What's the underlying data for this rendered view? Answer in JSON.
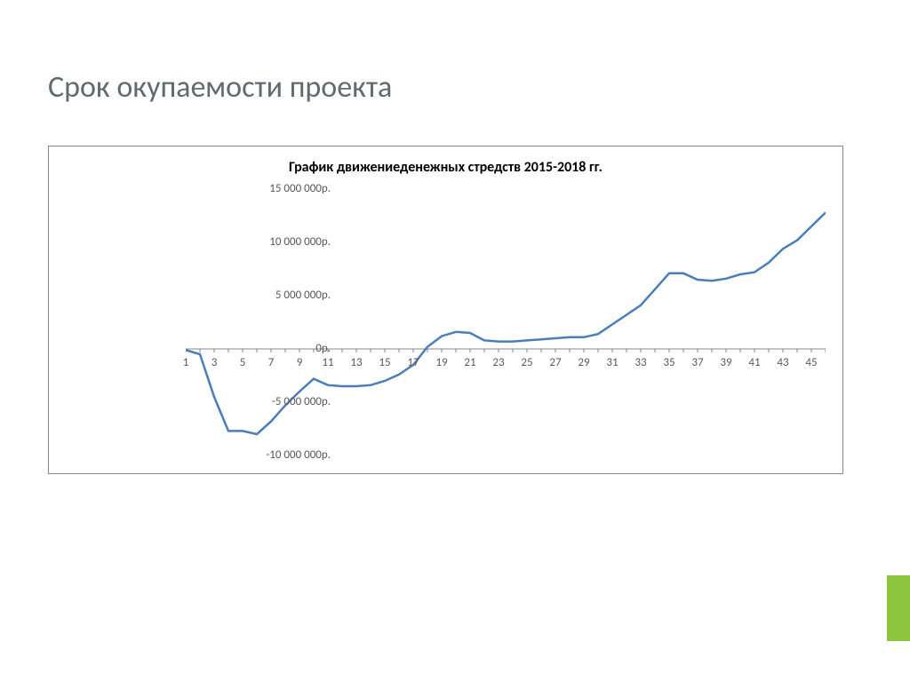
{
  "slide": {
    "title": "Срок окупаемости проекта",
    "title_color": "#5f6a72",
    "title_fontsize": 34
  },
  "accent": {
    "color": "#8cc63f"
  },
  "chart": {
    "type": "line",
    "title": "График движениеденежных стредств 2015-2018 гг.",
    "title_fontsize": 16,
    "title_fontweight": "bold",
    "frame_border_color": "#888888",
    "background_color": "#ffffff",
    "y_axis": {
      "min": -10000000,
      "max": 15000000,
      "tick_step": 5000000,
      "tick_labels": [
        "-10 000 000р.",
        "-5 000 000р.",
        "0р.",
        "5 000 000р.",
        "10 000 000р.",
        "15 000 000р."
      ],
      "tick_values": [
        -10000000,
        -5000000,
        0,
        5000000,
        10000000,
        15000000
      ],
      "label_fontsize": 13,
      "label_color": "#595959"
    },
    "x_axis": {
      "min": 1,
      "max": 46,
      "tick_step": 2,
      "tick_labels": [
        "1",
        "3",
        "5",
        "7",
        "9",
        "11",
        "13",
        "15",
        "17",
        "19",
        "21",
        "23",
        "25",
        "27",
        "29",
        "31",
        "33",
        "35",
        "37",
        "39",
        "41",
        "43",
        "45"
      ],
      "tick_values": [
        1,
        3,
        5,
        7,
        9,
        11,
        13,
        15,
        17,
        19,
        21,
        23,
        25,
        27,
        29,
        31,
        33,
        35,
        37,
        39,
        41,
        43,
        45
      ],
      "label_fontsize": 13,
      "label_color": "#595959",
      "baseline_at_y": 0,
      "tick_length": 4
    },
    "series": {
      "color": "#4a7ebb",
      "line_width": 2.5,
      "values": [
        -100000,
        -500000,
        -4500000,
        -7700000,
        -7700000,
        -8000000,
        -6800000,
        -5300000,
        -4000000,
        -2800000,
        -3400000,
        -3500000,
        -3500000,
        -3400000,
        -3000000,
        -2400000,
        -1500000,
        200000,
        1200000,
        1600000,
        1500000,
        800000,
        700000,
        700000,
        800000,
        900000,
        1000000,
        1100000,
        1100000,
        1400000,
        2300000,
        3200000,
        4100000,
        5600000,
        7100000,
        7100000,
        6500000,
        6400000,
        6600000,
        7000000,
        7200000,
        8100000,
        9400000,
        10200000,
        11500000,
        12800000
      ]
    }
  }
}
